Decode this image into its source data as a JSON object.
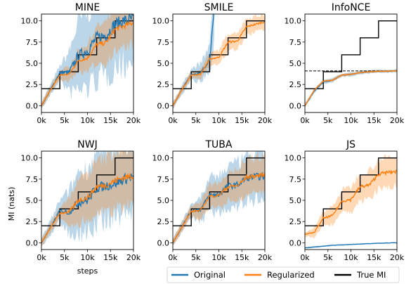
{
  "chart_data": {
    "type": "line",
    "xlabel": "steps",
    "ylabel": "MI (nats)",
    "xlim": [
      0,
      20000
    ],
    "ylim": [
      -0.8,
      10.8
    ],
    "x_ticks": [
      0,
      5000,
      10000,
      15000,
      20000
    ],
    "x_tick_labels": [
      "0k",
      "5k",
      "10k",
      "15k",
      "20k"
    ],
    "y_ticks": [
      0,
      2.5,
      5,
      7.5,
      10
    ],
    "y_tick_labels": [
      "0.0",
      "2.5",
      "5.0",
      "7.5",
      "10.0"
    ],
    "legend": {
      "placement": "bottom-right",
      "entries": [
        {
          "name": "Original",
          "color": "#1f77b4"
        },
        {
          "name": "Regularized",
          "color": "#ff7f0e"
        },
        {
          "name": "True MI",
          "color": "#000000"
        }
      ]
    },
    "true_mi": {
      "x": [
        0,
        4000,
        4000,
        8000,
        8000,
        12000,
        12000,
        16000,
        16000,
        20000
      ],
      "y": [
        2,
        2,
        4,
        4,
        6,
        6,
        8,
        8,
        10,
        10
      ]
    },
    "panels": [
      {
        "title": "MINE",
        "original": {
          "x": [
            0,
            2000,
            4000,
            6000,
            8000,
            10000,
            12000,
            14000,
            16000,
            18000,
            20000
          ],
          "y": [
            0,
            1.9,
            3.9,
            3.9,
            5.9,
            6.5,
            8.0,
            8.3,
            9.6,
            10.0,
            10.2
          ]
        },
        "regularized": {
          "x": [
            0,
            2000,
            4000,
            6000,
            8000,
            10000,
            12000,
            14000,
            16000,
            18000,
            20000
          ],
          "y": [
            0,
            1.9,
            3.6,
            3.7,
            5.3,
            5.6,
            7.2,
            7.4,
            9.0,
            9.4,
            9.8
          ]
        }
      },
      {
        "title": "SMILE",
        "original": {
          "x": [
            0,
            2000,
            4000,
            6000,
            8000,
            9000
          ],
          "y": [
            0,
            1.9,
            3.7,
            3.8,
            5.5,
            11.0
          ]
        },
        "regularized": {
          "x": [
            0,
            2000,
            4000,
            6000,
            8000,
            10000,
            12000,
            14000,
            16000,
            18000,
            20000
          ],
          "y": [
            0,
            1.9,
            3.6,
            3.7,
            5.5,
            5.7,
            7.5,
            7.6,
            9.3,
            9.6,
            9.9
          ]
        }
      },
      {
        "title": "InfoNCE",
        "bound": 4.1,
        "original": {
          "x": [
            0,
            2000,
            4000,
            6000,
            8000,
            10000,
            12000,
            14000,
            16000,
            18000,
            20000
          ],
          "y": [
            0,
            1.7,
            2.8,
            3.0,
            3.6,
            3.7,
            3.9,
            4.0,
            4.05,
            4.07,
            4.1
          ]
        },
        "regularized": {
          "x": [
            0,
            2000,
            4000,
            6000,
            8000,
            10000,
            12000,
            14000,
            16000,
            18000,
            20000
          ],
          "y": [
            0,
            1.8,
            2.9,
            3.0,
            3.6,
            3.7,
            3.9,
            4.0,
            4.05,
            4.07,
            4.1
          ]
        }
      },
      {
        "title": "NWJ",
        "original": {
          "x": [
            0,
            2000,
            4000,
            6000,
            8000,
            10000,
            12000,
            14000,
            16000,
            18000,
            20000
          ],
          "y": [
            0,
            1.8,
            3.8,
            3.6,
            4.8,
            5.0,
            6.5,
            6.7,
            7.0,
            7.5,
            7.8
          ]
        },
        "regularized": {
          "x": [
            0,
            2000,
            4000,
            6000,
            8000,
            10000,
            12000,
            14000,
            16000,
            18000,
            20000
          ],
          "y": [
            0,
            1.8,
            3.5,
            3.6,
            5.0,
            5.3,
            6.6,
            6.8,
            7.3,
            7.7,
            7.9
          ]
        }
      },
      {
        "title": "TUBA",
        "original": {
          "x": [
            0,
            2000,
            4000,
            6000,
            8000,
            10000,
            12000,
            14000,
            16000,
            18000,
            20000
          ],
          "y": [
            0,
            1.9,
            3.8,
            3.9,
            5.6,
            5.7,
            6.7,
            6.8,
            7.6,
            7.8,
            7.8
          ]
        },
        "regularized": {
          "x": [
            0,
            2000,
            4000,
            6000,
            8000,
            10000,
            12000,
            14000,
            16000,
            18000,
            20000
          ],
          "y": [
            0,
            1.9,
            3.7,
            3.8,
            5.5,
            5.6,
            6.6,
            6.7,
            7.7,
            7.9,
            8.0
          ]
        }
      },
      {
        "title": "JS",
        "original": {
          "x": [
            0,
            2000,
            4000,
            6000,
            8000,
            10000,
            12000,
            14000,
            16000,
            18000,
            20000
          ],
          "y": [
            -0.6,
            -0.5,
            -0.4,
            -0.3,
            -0.25,
            -0.2,
            -0.15,
            -0.1,
            -0.05,
            -0.02,
            0
          ]
        },
        "regularized": {
          "x": [
            0,
            2000,
            4000,
            6000,
            8000,
            10000,
            12000,
            14000,
            16000,
            18000,
            20000
          ],
          "y": [
            1.0,
            1.2,
            2.9,
            3.2,
            4.9,
            5.1,
            6.6,
            6.8,
            8.1,
            8.3,
            8.4
          ]
        }
      }
    ]
  }
}
